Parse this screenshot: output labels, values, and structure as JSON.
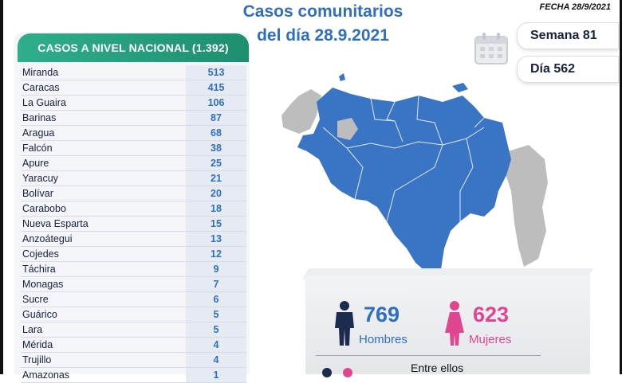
{
  "title_line1": "Casos comunitarios",
  "title_line2": "del día 28.9.2021",
  "fecha": "FECHA 28/9/2021",
  "national_header": "CASOS A NIVEL NACIONAL (1.392)",
  "states": [
    {
      "name": "Miranda",
      "cases": "513"
    },
    {
      "name": "Caracas",
      "cases": "415"
    },
    {
      "name": "La Guaira",
      "cases": "106"
    },
    {
      "name": "Barinas",
      "cases": "87"
    },
    {
      "name": "Aragua",
      "cases": "68"
    },
    {
      "name": "Falcón",
      "cases": "38"
    },
    {
      "name": "Apure",
      "cases": "25"
    },
    {
      "name": "Yaracuy",
      "cases": "21"
    },
    {
      "name": "Bolívar",
      "cases": "20"
    },
    {
      "name": "Carabobo",
      "cases": "18"
    },
    {
      "name": "Nueva Esparta",
      "cases": "15"
    },
    {
      "name": "Anzoátegui",
      "cases": "13"
    },
    {
      "name": "Cojedes",
      "cases": "12"
    },
    {
      "name": "Táchira",
      "cases": "9"
    },
    {
      "name": "Monagas",
      "cases": "7"
    },
    {
      "name": "Sucre",
      "cases": "6"
    },
    {
      "name": "Guárico",
      "cases": "5"
    },
    {
      "name": "Lara",
      "cases": "5"
    },
    {
      "name": "Mérida",
      "cases": "4"
    },
    {
      "name": "Trujillo",
      "cases": "4"
    },
    {
      "name": "Amazonas",
      "cases": "1"
    }
  ],
  "semana": "Semana 81",
  "dia": "Día 562",
  "hombres": {
    "value": "769",
    "label": "Hombres"
  },
  "mujeres": {
    "value": "623",
    "label": "Mujeres"
  },
  "entre": "Entre ellos",
  "colors": {
    "accent_blue": "#2f6fc0",
    "accent_pink": "#e0468f",
    "header_green": "#2fae8a",
    "map_blue": "#3a74c4",
    "map_gray": "#bdbdbd"
  },
  "icons": [
    "calendar-icon",
    "male-person-icon",
    "female-person-icon"
  ]
}
